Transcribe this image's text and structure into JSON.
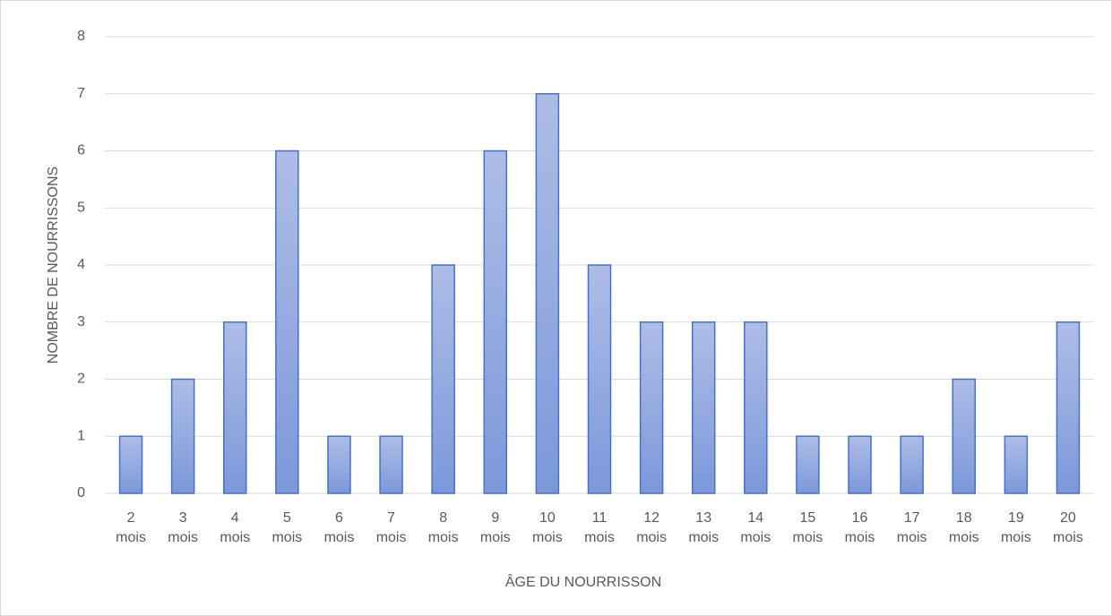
{
  "chart_data": {
    "type": "bar",
    "x_label": "ÂGE DU NOURRISSON",
    "y_label": "NOMBRE DE NOURRISSONS",
    "categories": [
      "2 mois",
      "3 mois",
      "4 mois",
      "5 mois",
      "6 mois",
      "7 mois",
      "8 mois",
      "9 mois",
      "10 mois",
      "11 mois",
      "12 mois",
      "13 mois",
      "14 mois",
      "15 mois",
      "16 mois",
      "17 mois",
      "18 mois",
      "19 mois",
      "20 mois"
    ],
    "values": [
      1,
      2,
      3,
      6,
      1,
      1,
      4,
      6,
      7,
      4,
      3,
      3,
      3,
      1,
      1,
      1,
      2,
      1,
      3
    ],
    "color": "#4472c4",
    "ylim": [
      0,
      8
    ],
    "yticks": [
      0,
      1,
      2,
      3,
      4,
      5,
      6,
      7,
      8
    ],
    "grid": true
  }
}
